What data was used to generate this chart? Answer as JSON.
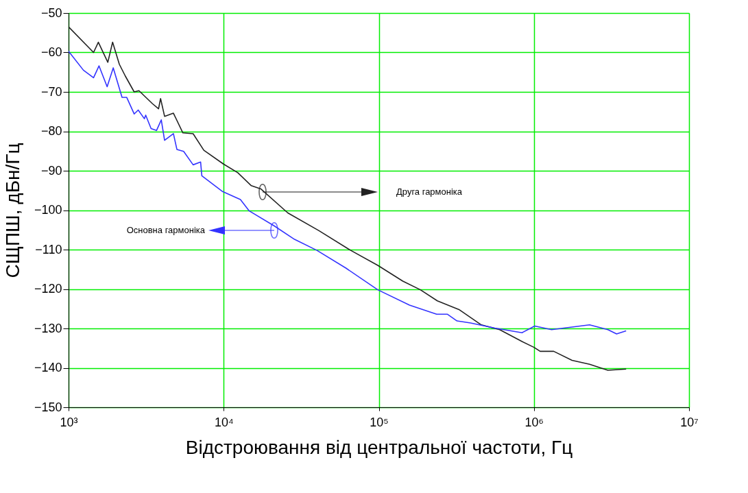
{
  "chart_data": {
    "type": "line",
    "xlabel": "Відстроювання від центральної частоти, Гц",
    "ylabel": "СЩПШ, дБн/Гц",
    "log": "x",
    "grid": true,
    "line_style": "solid",
    "marker": "none",
    "xlim": [
      1000,
      10000000
    ],
    "xticks": [
      {
        "value": 1000,
        "label": "10³"
      },
      {
        "value": 10000,
        "label": "10⁴"
      },
      {
        "value": 100000,
        "label": "10⁵"
      },
      {
        "value": 1000000,
        "label": "10⁶"
      },
      {
        "value": 10000000,
        "label": "10⁷"
      }
    ],
    "ylim": [
      -150,
      -50
    ],
    "yticks": [
      -150,
      -140,
      -130,
      -120,
      -110,
      -100,
      -90,
      -80,
      -70,
      -60,
      -50
    ],
    "series": [
      {
        "color": "#222222",
        "x": [
          1000,
          1449,
          1556,
          1791,
          1923,
          2125,
          2323,
          2648,
          2843,
          3475,
          3802,
          3919,
          4159,
          4742,
          5458,
          6353,
          7447,
          9970,
          12330,
          15070,
          17340,
          25900,
          41100,
          65900,
          98500,
          142800,
          185400,
          238400,
          328700,
          458100,
          601000,
          837500,
          1002000,
          1097000,
          1342000,
          1760000,
          2284000,
          2997000,
          3930000
        ],
        "values": [
          -53.5,
          -60,
          -57.4,
          -62.5,
          -57.4,
          -63,
          -66,
          -70,
          -69.7,
          -73,
          -74.3,
          -71.7,
          -76.2,
          -75.4,
          -80.4,
          -80.6,
          -84.8,
          -88.3,
          -90.5,
          -93.8,
          -94.6,
          -100.7,
          -105.2,
          -110.2,
          -114,
          -118,
          -120.2,
          -123,
          -125.2,
          -129.1,
          -130.3,
          -133.3,
          -134.8,
          -135.8,
          -135.8,
          -138.1,
          -139.1,
          -140.6,
          -140.3
        ]
      },
      {
        "color": "#3333ff",
        "x": [
          1000,
          1247,
          1449,
          1571,
          1773,
          1941,
          2212,
          2372,
          2648,
          2812,
          3081,
          3143,
          3404,
          3689,
          3960,
          4159,
          4742,
          4994,
          5519,
          6353,
          7100,
          7230,
          9770,
          12820,
          14620,
          21190,
          28620,
          39900,
          61400,
          98500,
          157800,
          235900,
          277300,
          319200,
          390000,
          559700,
          837500,
          1012000,
          1300000,
          2284000,
          2997000,
          3412000,
          3930000
        ],
        "values": [
          -59.7,
          -64.5,
          -66.4,
          -63.4,
          -68.7,
          -63.9,
          -71.4,
          -71.4,
          -75.6,
          -74.6,
          -76.8,
          -75.9,
          -79.3,
          -79.8,
          -77.1,
          -82.3,
          -80.6,
          -84.6,
          -85.1,
          -88.5,
          -87.8,
          -91.3,
          -95.2,
          -97.3,
          -100.2,
          -104,
          -107.4,
          -110.2,
          -114.7,
          -120.2,
          -124.1,
          -126.4,
          -126.4,
          -128.1,
          -128.6,
          -129.9,
          -131.1,
          -129.4,
          -130.3,
          -129.1,
          -130.3,
          -131.4,
          -130.6
        ]
      }
    ],
    "annotations": [
      "Друга гармоніка",
      "Основна гармоніка"
    ]
  }
}
